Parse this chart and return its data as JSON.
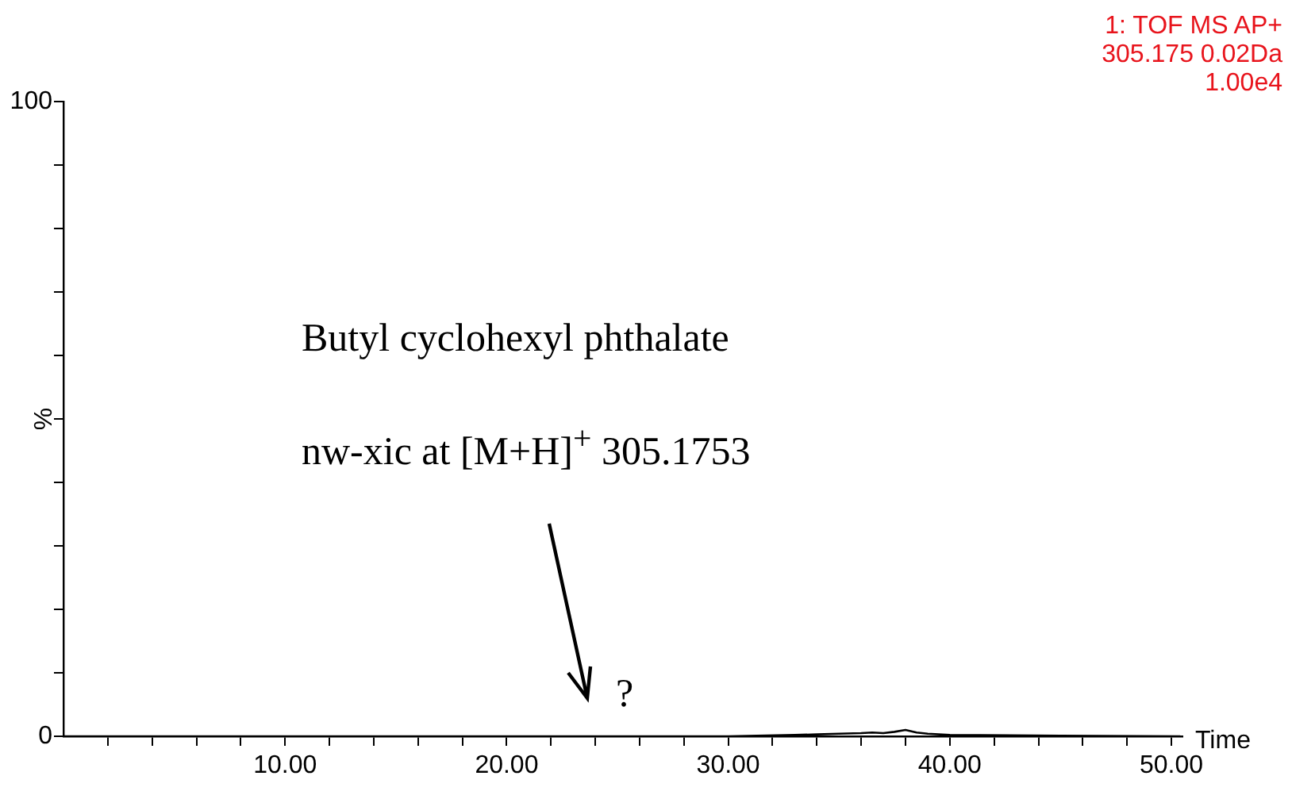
{
  "chart_data": {
    "type": "line",
    "xlabel": "Time",
    "ylabel": "%",
    "annotations": [
      "1: TOF MS AP+",
      "305.175 0.02Da",
      "1.00e4",
      "Butyl cyclohexyl phthalate",
      "nw-xic at [M+H]$^{+}$ 305.1753",
      "?"
    ],
    "x": [
      0,
      30,
      33,
      34,
      35,
      36,
      36.5,
      37,
      37.5,
      38,
      38.5,
      39,
      40,
      45,
      50.4
    ],
    "series": [
      {
        "color": "#000000",
        "values": [
          0,
          0,
          0.2,
          0.3,
          0.4,
          0.5,
          0.6,
          0.5,
          0.7,
          1,
          0.6,
          0.4,
          0.2,
          0.1,
          0
        ]
      }
    ],
    "xlim": [
      0,
      50.5
    ],
    "xticks": [
      {
        "value": 2,
        "label": null
      },
      {
        "value": 4,
        "label": null
      },
      {
        "value": 6,
        "label": null
      },
      {
        "value": 8,
        "label": null
      },
      {
        "value": 10,
        "label": "10.00"
      },
      {
        "value": 12,
        "label": null
      },
      {
        "value": 14,
        "label": null
      },
      {
        "value": 16,
        "label": null
      },
      {
        "value": 18,
        "label": null
      },
      {
        "value": 20,
        "label": "20.00"
      },
      {
        "value": 22,
        "label": null
      },
      {
        "value": 24,
        "label": null
      },
      {
        "value": 26,
        "label": null
      },
      {
        "value": 28,
        "label": null
      },
      {
        "value": 30,
        "label": "30.00"
      },
      {
        "value": 32,
        "label": null
      },
      {
        "value": 34,
        "label": null
      },
      {
        "value": 36,
        "label": null
      },
      {
        "value": 38,
        "label": null
      },
      {
        "value": 40,
        "label": "40.00"
      },
      {
        "value": 42,
        "label": null
      },
      {
        "value": 44,
        "label": null
      },
      {
        "value": 46,
        "label": null
      },
      {
        "value": 48,
        "label": null
      },
      {
        "value": 50,
        "label": "50.00"
      }
    ],
    "ylim": [
      0,
      100
    ],
    "yticks": [
      0,
      {
        "value": 10,
        "label": null
      },
      {
        "value": 20,
        "label": null
      },
      {
        "value": 30,
        "label": null
      },
      {
        "value": 40,
        "label": null
      },
      {
        "value": 50,
        "label": null
      },
      {
        "value": 60,
        "label": null
      },
      {
        "value": 70,
        "label": null
      },
      {
        "value": 80,
        "label": null
      },
      {
        "value": 90,
        "label": null
      },
      100
    ],
    "grid": false,
    "legend": false,
    "marker": "none",
    "line_style": "solid"
  }
}
